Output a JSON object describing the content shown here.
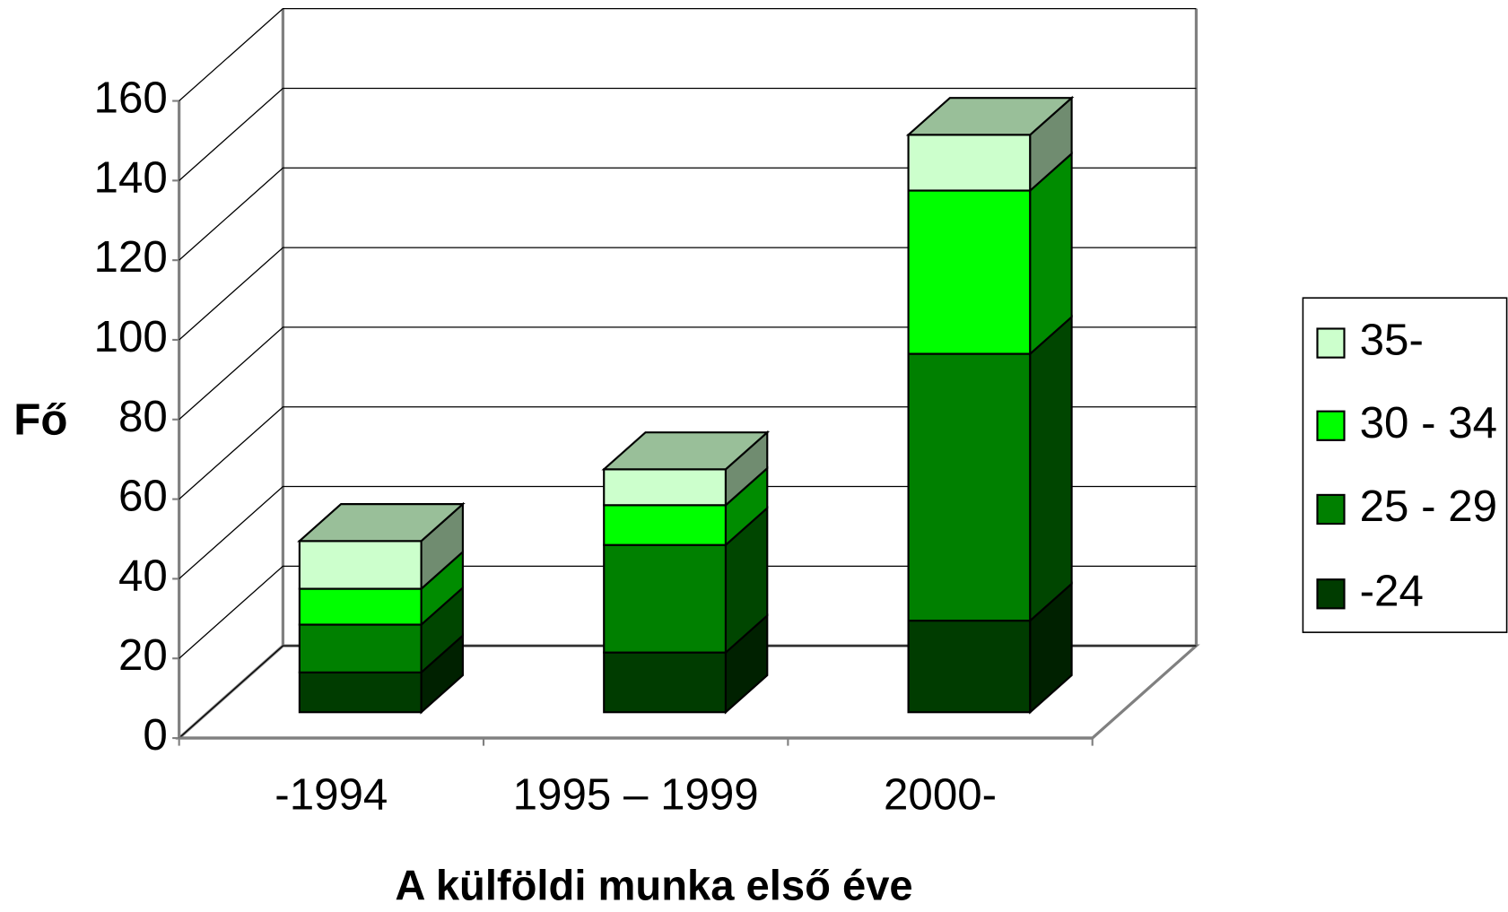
{
  "chart_data": {
    "type": "bar3d_stacked",
    "x_label": "A külföldi munka első éve",
    "y_label": "Fő",
    "categories": [
      "-1994",
      "1995 – 1999",
      "2000-"
    ],
    "series": [
      {
        "name": "-24",
        "color": "#003c00",
        "values": [
          10,
          15,
          23
        ]
      },
      {
        "name": "25 - 29",
        "color": "#008000",
        "values": [
          12,
          27,
          67
        ]
      },
      {
        "name": "30 - 34",
        "color": "#00ff00",
        "values": [
          9,
          10,
          41
        ]
      },
      {
        "name": "35-",
        "color": "#ccffcc",
        "values": [
          12,
          9,
          14
        ]
      }
    ],
    "ylim": [
      0,
      160
    ],
    "yticks": [
      0,
      20,
      40,
      60,
      80,
      100,
      120,
      140,
      160
    ],
    "grid": true,
    "legend": "right"
  }
}
